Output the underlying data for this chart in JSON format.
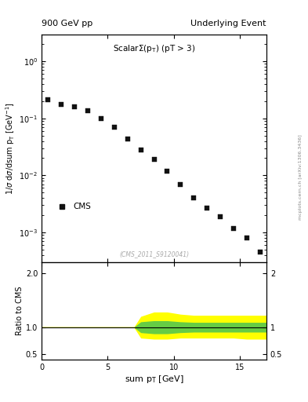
{
  "title_left": "900 GeV pp",
  "title_right": "Underlying Event",
  "watermark": "(CMS_2011_S9120041)",
  "arxiv_text": "mcplots.cern.ch [arXiv:1306.3436]",
  "cms_label": "CMS",
  "data_x": [
    0.5,
    1.5,
    2.5,
    3.5,
    4.5,
    5.5,
    6.5,
    7.5,
    8.5,
    9.5,
    10.5,
    11.5,
    12.5,
    13.5,
    14.5,
    15.5,
    16.5
  ],
  "data_y": [
    0.215,
    0.175,
    0.16,
    0.135,
    0.098,
    0.07,
    0.044,
    0.028,
    0.019,
    0.012,
    0.0068,
    0.004,
    0.0027,
    0.0019,
    0.00115,
    0.0008,
    0.00045
  ],
  "ylim_log": [
    0.0003,
    3.0
  ],
  "xlim": [
    0,
    17
  ],
  "ratio_ylim": [
    0.4,
    2.2
  ],
  "ratio_yticks": [
    0.5,
    1.0,
    2.0
  ],
  "yellow_x": [
    0.0,
    0.5,
    1.5,
    2.5,
    3.5,
    4.5,
    5.5,
    6.5,
    7.0,
    7.5,
    8.5,
    9.5,
    10.5,
    11.5,
    12.5,
    13.5,
    14.5,
    15.5,
    16.5,
    17.0
  ],
  "yellow_upper": [
    1.01,
    1.01,
    1.01,
    1.01,
    1.01,
    1.01,
    1.01,
    1.01,
    1.01,
    1.2,
    1.28,
    1.28,
    1.24,
    1.22,
    1.22,
    1.22,
    1.22,
    1.22,
    1.22,
    1.22
  ],
  "yellow_lower": [
    0.99,
    0.99,
    0.99,
    0.99,
    0.99,
    0.99,
    0.99,
    0.99,
    0.99,
    0.8,
    0.78,
    0.78,
    0.8,
    0.8,
    0.8,
    0.8,
    0.8,
    0.78,
    0.78,
    0.78
  ],
  "green_x": [
    0.0,
    0.5,
    1.5,
    2.5,
    3.5,
    4.5,
    5.5,
    6.5,
    7.0,
    7.5,
    8.5,
    9.5,
    10.5,
    11.5,
    12.5,
    13.5,
    14.5,
    15.5,
    16.5,
    17.0
  ],
  "green_upper": [
    1.005,
    1.005,
    1.005,
    1.005,
    1.005,
    1.005,
    1.005,
    1.005,
    1.005,
    1.1,
    1.12,
    1.12,
    1.1,
    1.09,
    1.09,
    1.09,
    1.09,
    1.09,
    1.09,
    1.09
  ],
  "green_lower": [
    0.995,
    0.995,
    0.995,
    0.995,
    0.995,
    0.995,
    0.995,
    0.995,
    0.995,
    0.9,
    0.88,
    0.88,
    0.9,
    0.91,
    0.91,
    0.91,
    0.91,
    0.91,
    0.91,
    0.91
  ],
  "marker_color": "#111111",
  "marker_size": 4,
  "bg_color": "#ffffff",
  "panel_ratio": [
    2.8,
    1.2
  ]
}
